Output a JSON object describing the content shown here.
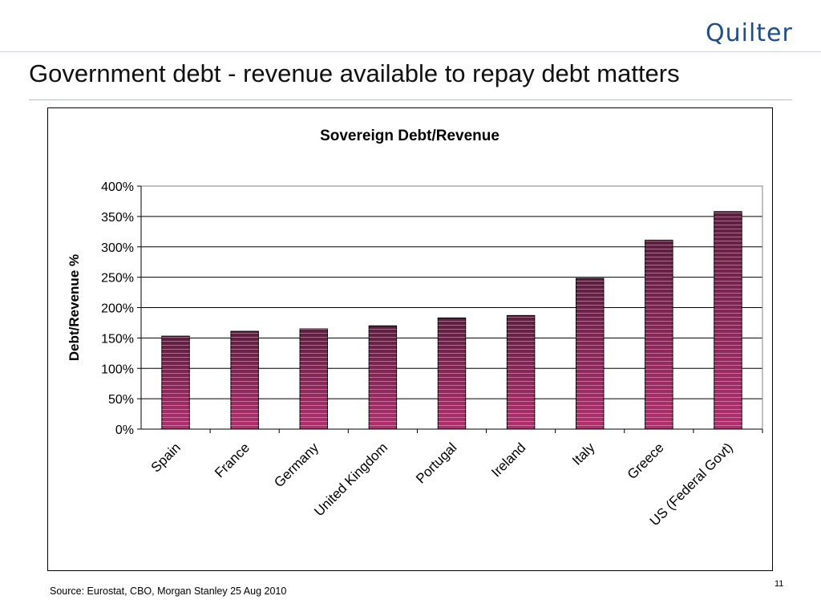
{
  "header": {
    "logo_text": "Quilter"
  },
  "slide": {
    "title": "Government debt - revenue available to repay debt matters",
    "source": "Source: Eurostat, CBO, Morgan Stanley 25 Aug 2010",
    "page_number": "11"
  },
  "chart_data": {
    "type": "bar",
    "title": "Sovereign Debt/Revenue",
    "xlabel": "",
    "ylabel": "Debt/Revenue %",
    "categories": [
      "Spain",
      "France",
      "Germany",
      "United Kingdom",
      "Portugal",
      "Ireland",
      "Italy",
      "Greece",
      "US (Federal Govt)"
    ],
    "values": [
      153,
      161,
      165,
      170,
      183,
      187,
      248,
      311,
      358
    ],
    "value_unit": "%",
    "ylim": [
      0,
      400
    ],
    "yticks": [
      0,
      50,
      100,
      150,
      200,
      250,
      300,
      350,
      400
    ],
    "ytick_labels": [
      "0%",
      "50%",
      "100%",
      "150%",
      "200%",
      "250%",
      "300%",
      "350%",
      "400%"
    ],
    "grid": true,
    "legend": "none",
    "colors": {
      "bar_top": "#5a1f3e",
      "bar_bottom": "#b0306e",
      "bar_stripe": "#e9a8c8"
    }
  }
}
